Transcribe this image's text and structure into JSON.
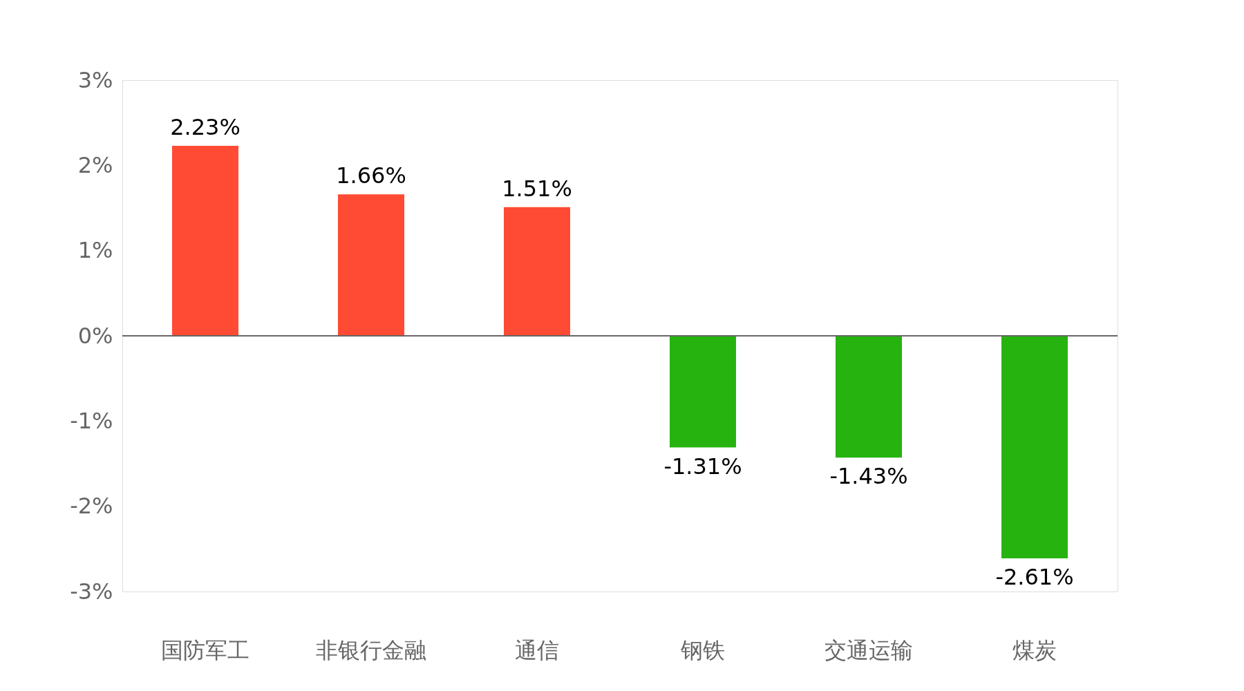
{
  "chart_data": {
    "type": "bar",
    "categories": [
      "国防军工",
      "非银行金融",
      "通信",
      "钢铁",
      "交通运输",
      "煤炭"
    ],
    "values": [
      2.23,
      1.66,
      1.51,
      -1.31,
      -1.43,
      -2.61
    ],
    "colors": [
      "#ff4b33",
      "#ff4b33",
      "#ff4b33",
      "#27b30f",
      "#27b30f",
      "#27b30f"
    ],
    "value_labels": [
      "2.23%",
      "1.66%",
      "1.51%",
      "-1.31%",
      "-1.43%",
      "-2.61%"
    ],
    "ylim": [
      -3,
      3
    ],
    "yticks": [
      {
        "value": -3,
        "label": "-3%"
      },
      {
        "value": -2,
        "label": "-2%"
      },
      {
        "value": -1,
        "label": "-1%"
      },
      {
        "value": 0,
        "label": "0%"
      },
      {
        "value": 1,
        "label": "1%"
      },
      {
        "value": 2,
        "label": "2%"
      },
      {
        "value": 3,
        "label": "3%"
      }
    ],
    "ref_lines": [
      {
        "axis": "y",
        "value": 0,
        "label": null,
        "color": "#666666"
      }
    ],
    "grid": false
  }
}
